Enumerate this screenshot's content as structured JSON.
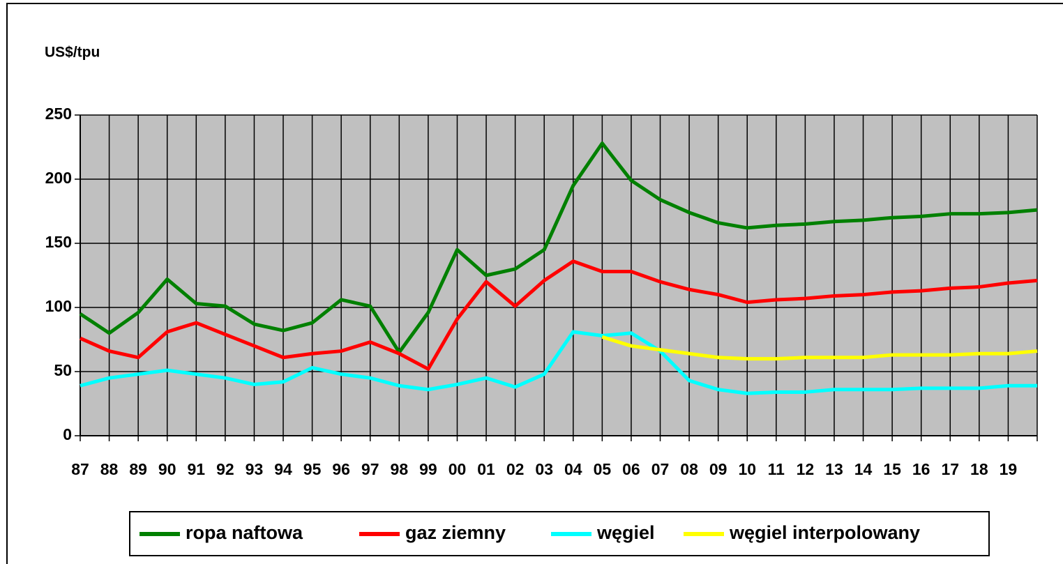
{
  "chart_data": {
    "type": "line",
    "y_label": "US$/tpu",
    "categories": [
      "87",
      "88",
      "89",
      "90",
      "91",
      "92",
      "93",
      "94",
      "95",
      "96",
      "97",
      "98",
      "99",
      "00",
      "01",
      "02",
      "03",
      "04",
      "05",
      "06",
      "07",
      "08",
      "09",
      "10",
      "11",
      "12",
      "13",
      "14",
      "15",
      "16",
      "17",
      "18",
      "19",
      null
    ],
    "series": [
      {
        "name": "ropa naftowa",
        "color": "#008000",
        "values": [
          95,
          80,
          96,
          122,
          103,
          101,
          87,
          82,
          88,
          106,
          101,
          65,
          96,
          145,
          125,
          130,
          145,
          195,
          228,
          199,
          184,
          174,
          166,
          162,
          164,
          165,
          167,
          168,
          170,
          171,
          173,
          173,
          174,
          176
        ]
      },
      {
        "name": "gaz ziemny",
        "color": "#ff0000",
        "values": [
          76,
          66,
          61,
          81,
          88,
          79,
          70,
          61,
          64,
          66,
          73,
          64,
          52,
          91,
          120,
          101,
          121,
          136,
          128,
          128,
          120,
          114,
          110,
          104,
          106,
          107,
          109,
          110,
          112,
          113,
          115,
          116,
          119,
          121
        ]
      },
      {
        "name": "węgiel",
        "color": "#00ffff",
        "values": [
          39,
          45,
          48,
          51,
          48,
          45,
          40,
          42,
          53,
          48,
          45,
          39,
          36,
          40,
          45,
          38,
          48,
          81,
          78,
          80,
          66,
          43,
          36,
          33,
          34,
          34,
          36,
          36,
          36,
          37,
          37,
          37,
          39,
          39
        ]
      },
      {
        "name": "węgiel interpolowany",
        "color": "#ffff00",
        "values": [
          null,
          null,
          null,
          null,
          null,
          null,
          null,
          null,
          null,
          null,
          null,
          null,
          null,
          null,
          null,
          null,
          null,
          null,
          77,
          70,
          67,
          64,
          61,
          60,
          60,
          61,
          61,
          61,
          63,
          63,
          63,
          64,
          64,
          66
        ]
      }
    ],
    "ylim": [
      0,
      250
    ],
    "yticks": [
      0,
      50,
      100,
      150,
      200,
      250
    ],
    "grid": true,
    "legend": "bottom"
  }
}
